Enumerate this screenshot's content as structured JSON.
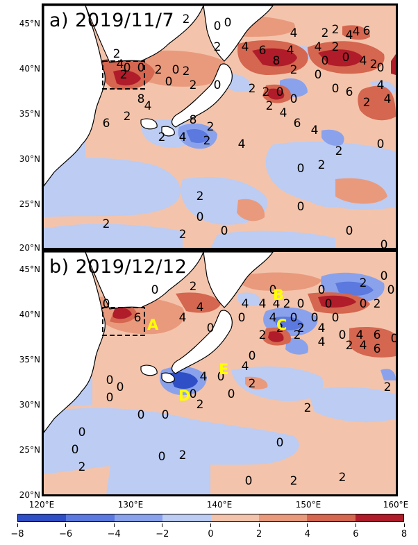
{
  "panels": [
    {
      "title": "a) 2019/11/7"
    },
    {
      "title": "b) 2019/12/12"
    }
  ],
  "lat_labels": [
    "45°N",
    "40°N",
    "35°N",
    "30°N",
    "25°N",
    "20°N"
  ],
  "lon_labels": [
    "120°E",
    "130°E",
    "140°E",
    "150°E",
    "160°E"
  ],
  "colorbar": {
    "ticks": [
      "−8",
      "−6",
      "−4",
      "−2",
      "0",
      "2",
      "4",
      "6",
      "8"
    ],
    "colors": [
      "#2f4fc6",
      "#5b79de",
      "#8aa2ec",
      "#bcccf3",
      "#f3c4ab",
      "#e99a7d",
      "#d5664f",
      "#b01c2a"
    ]
  },
  "region_letters": {
    "A": "A",
    "B": "B",
    "C": "C",
    "D": "D",
    "E": "E"
  },
  "contour_labels_a": [
    "2",
    "0",
    "0",
    "4",
    "2",
    "4",
    "4",
    "6",
    "2",
    "4",
    "6",
    "8",
    "4",
    "2",
    "4",
    "0",
    "2",
    "0",
    "0",
    "4",
    "2",
    "0",
    "2",
    "2",
    "4",
    "0",
    "2",
    "0",
    "2",
    "0",
    "2",
    "2",
    "0",
    "0",
    "2",
    "2",
    "0",
    "2",
    "0",
    "4",
    "0",
    "6",
    "2",
    "4",
    "4",
    "8",
    "4",
    "2",
    "6",
    "2",
    "4",
    "8",
    "2",
    "2",
    "4",
    "6",
    "4",
    "2",
    "2",
    "0",
    "0",
    "0",
    "2",
    "0",
    "2",
    "2",
    "0",
    "0",
    "0"
  ],
  "contour_labels_b": [
    "0",
    "2",
    "0",
    "0",
    "4",
    "4",
    "4",
    "4",
    "2",
    "0",
    "0",
    "0",
    "4",
    "2",
    "0",
    "2",
    "0",
    "0",
    "4",
    "0",
    "4",
    "6",
    "2",
    "2",
    "4",
    "2",
    "4",
    "6",
    "0",
    "2",
    "0",
    "0",
    "0",
    "0",
    "0",
    "0",
    "0",
    "0",
    "2",
    "0",
    "2",
    "0",
    "0",
    "2",
    "2",
    "2",
    "2",
    "0",
    "6",
    "4",
    "4",
    "0",
    "4",
    "2",
    "0",
    "2",
    "0",
    "0",
    "0",
    "0",
    "0",
    "2"
  ]
}
